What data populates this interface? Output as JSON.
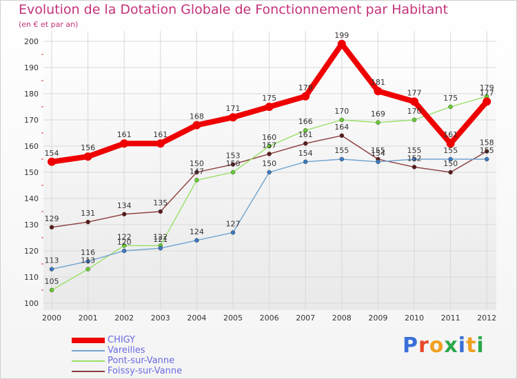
{
  "header": {
    "title": "Evolution de la Dotation Globale de Fonctionnement par Habitant",
    "subtitle": "(en € et par an)"
  },
  "logo": {
    "text": "Proxiti",
    "letter_colors": [
      "#3a6fd8",
      "#e8482a",
      "#f0a020",
      "#2aa84a",
      "#3a6fd8",
      "#f0a020",
      "#2aa84a"
    ]
  },
  "colors": {
    "title": "#c4327a",
    "grid": "#d8d8d8",
    "plot_bg_top": "#ffffff",
    "plot_bg_bottom": "#e9e9e9"
  },
  "chart_data": {
    "type": "line",
    "title": "Evolution de la Dotation Globale de Fonctionnement par Habitant",
    "ylabel": "(en € et par an)",
    "xlabel": "",
    "ylim": [
      100,
      200
    ],
    "yticks": [
      100,
      110,
      120,
      130,
      140,
      150,
      160,
      170,
      180,
      190,
      200
    ],
    "categories": [
      "2000",
      "2001",
      "2002",
      "2003",
      "2004",
      "2005",
      "2006",
      "2007",
      "2008",
      "2009",
      "2010",
      "2011",
      "2012"
    ],
    "grid": true,
    "legend_position": "bottom-left",
    "series": [
      {
        "name": "CHIGY",
        "color": "#ee0000",
        "marker_color": "#ee0000",
        "weight": "thick",
        "values": [
          154,
          156,
          161,
          161,
          168,
          171,
          175,
          179,
          199,
          181,
          177,
          161,
          177
        ]
      },
      {
        "name": "Vareilles",
        "color": "#6fa3d0",
        "marker_color": "#3a78c0",
        "weight": "thin",
        "values": [
          113,
          116,
          120,
          121,
          124,
          127,
          150,
          154,
          155,
          154,
          155,
          155,
          155
        ]
      },
      {
        "name": "Pont-sur-Vanne",
        "color": "#99e066",
        "marker_color": "#66cc33",
        "weight": "thin",
        "values": [
          105,
          113,
          122,
          122,
          147,
          150,
          160,
          166,
          170,
          169,
          170,
          175,
          179
        ]
      },
      {
        "name": "Foissy-sur-Vanne",
        "color": "#8a3a3a",
        "marker_color": "#5a1a1a",
        "weight": "thin",
        "values": [
          129,
          131,
          134,
          135,
          150,
          153,
          157,
          161,
          164,
          155,
          152,
          150,
          158
        ]
      }
    ]
  }
}
